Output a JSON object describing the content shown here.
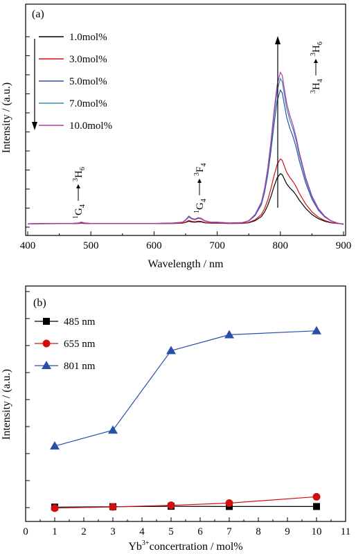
{
  "chart_data": [
    {
      "panel_label": "(a)",
      "type": "line",
      "xlabel": "Wavelength / nm",
      "ylabel": "Intensity / (a.u.)",
      "xlim": [
        400,
        900
      ],
      "xticks": [
        400,
        500,
        600,
        700,
        800,
        900
      ],
      "ylim": [
        0,
        1.0
      ],
      "legend_position": "top-left",
      "series": [
        {
          "name": "1.0mol%",
          "color": "#000000",
          "scale": 0.3
        },
        {
          "name": "3.0mol%",
          "color": "#d01010",
          "scale": 0.38
        },
        {
          "name": "5.0mol%",
          "color": "#2a4fa8",
          "scale": 0.77
        },
        {
          "name": "7.0mol%",
          "color": "#3a8aa8",
          "scale": 0.82
        },
        {
          "name": "10.0mol%",
          "color": "#b03aa8",
          "scale": 0.84
        }
      ],
      "base_profile": {
        "x": [
          400,
          450,
          470,
          480,
          485,
          490,
          500,
          550,
          600,
          630,
          645,
          650,
          655,
          660,
          665,
          670,
          675,
          680,
          690,
          700,
          720,
          740,
          750,
          760,
          770,
          775,
          780,
          785,
          790,
          795,
          800,
          803,
          806,
          810,
          815,
          820,
          825,
          830,
          840,
          850,
          860,
          870,
          880,
          890,
          900
        ],
        "y": [
          0.02,
          0.022,
          0.022,
          0.025,
          0.03,
          0.025,
          0.022,
          0.022,
          0.022,
          0.025,
          0.03,
          0.045,
          0.07,
          0.055,
          0.05,
          0.06,
          0.055,
          0.04,
          0.03,
          0.03,
          0.025,
          0.028,
          0.04,
          0.08,
          0.16,
          0.25,
          0.38,
          0.55,
          0.75,
          0.92,
          1.0,
          0.98,
          0.9,
          0.8,
          0.72,
          0.66,
          0.58,
          0.48,
          0.32,
          0.2,
          0.12,
          0.07,
          0.04,
          0.025,
          0.015
        ]
      },
      "annotations": [
        {
          "lower": "1G4",
          "upper": "3H6",
          "lower_text": "1",
          "lower_main": "G",
          "lower_sub": "4",
          "upper_text": "3",
          "upper_main": "H",
          "upper_sub": "6"
        },
        {
          "lower_text": "1",
          "lower_main": "G",
          "lower_sub": "4",
          "upper_text": "3",
          "upper_main": "F",
          "upper_sub": "4"
        },
        {
          "lower_text": "3",
          "lower_main": "H",
          "lower_sub": "4",
          "upper_text": "3",
          "upper_main": "H",
          "upper_sub": "6"
        }
      ]
    },
    {
      "panel_label": "(b)",
      "type": "line",
      "xlabel_prefix": "Yb",
      "xlabel_sup": "3+",
      "xlabel_rest": "concertration / mol%",
      "ylabel": "Intensity / (a.u.)",
      "xlim": [
        0,
        11
      ],
      "xticks": [
        0,
        1,
        2,
        3,
        4,
        5,
        6,
        7,
        8,
        9,
        10,
        11
      ],
      "ylim": [
        0,
        1.0
      ],
      "legend_position": "top-left",
      "x": [
        1,
        3,
        5,
        7,
        10
      ],
      "series": [
        {
          "name": "485 nm",
          "color": "#000000",
          "marker": "square",
          "values": [
            0.013,
            0.015,
            0.017,
            0.016,
            0.016
          ]
        },
        {
          "name": "655 nm",
          "color": "#d01010",
          "marker": "circle",
          "values": [
            0.008,
            0.014,
            0.022,
            0.033,
            0.065
          ]
        },
        {
          "name": "801 nm",
          "color": "#2a4fa8",
          "marker": "triangle",
          "values": [
            0.32,
            0.4,
            0.8,
            0.88,
            0.9
          ]
        }
      ]
    }
  ]
}
